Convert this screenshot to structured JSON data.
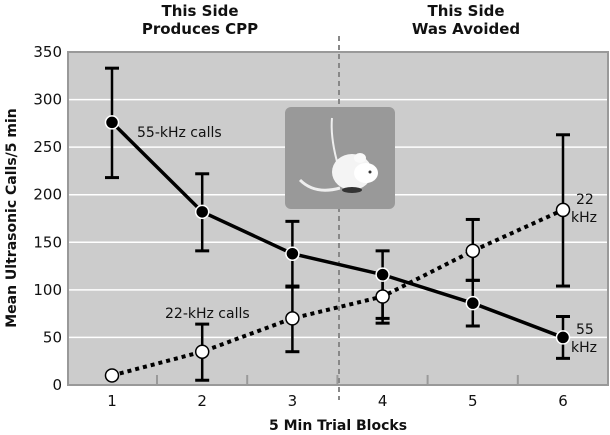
{
  "chart_data": {
    "type": "line",
    "title": "",
    "xlabel": "5 Min Trial Blocks",
    "ylabel": "Mean Ultrasonic Calls/5 min",
    "x": [
      1,
      2,
      3,
      4,
      5,
      6
    ],
    "xticks": [
      "1",
      "2",
      "3",
      "4",
      "5",
      "6"
    ],
    "yticks": [
      "0",
      "50",
      "100",
      "150",
      "200",
      "250",
      "300",
      "350"
    ],
    "ylim": [
      0,
      350
    ],
    "grid": true,
    "divider_between": [
      3,
      4
    ],
    "region_labels": [
      {
        "line1": "This Side",
        "line2": "Produces CPP"
      },
      {
        "line1": "This Side",
        "line2": "Was Avoided"
      }
    ],
    "series": [
      {
        "name": "55-kHz calls",
        "end_label": [
          "55",
          "kHz"
        ],
        "style": "solid",
        "marker": "filled",
        "values": [
          276,
          182,
          138,
          116,
          86,
          50
        ],
        "err_high": [
          333,
          222,
          172,
          141,
          110,
          72
        ],
        "err_low": [
          218,
          141,
          103,
          65,
          62,
          28
        ]
      },
      {
        "name": "22-kHz calls",
        "end_label": [
          "22",
          "kHz"
        ],
        "style": "dotted",
        "marker": "open",
        "values": [
          10,
          35,
          70,
          93,
          141,
          184
        ],
        "err_high": [
          null,
          64,
          104,
          116,
          174,
          263
        ],
        "err_low": [
          null,
          5,
          35,
          70,
          110,
          104
        ]
      }
    ],
    "colors": {
      "plot_bg": "#cccccc",
      "grid": "#ffffff",
      "line": "#000000",
      "inset_bg": "#999999"
    },
    "inset_image": "mouse"
  }
}
